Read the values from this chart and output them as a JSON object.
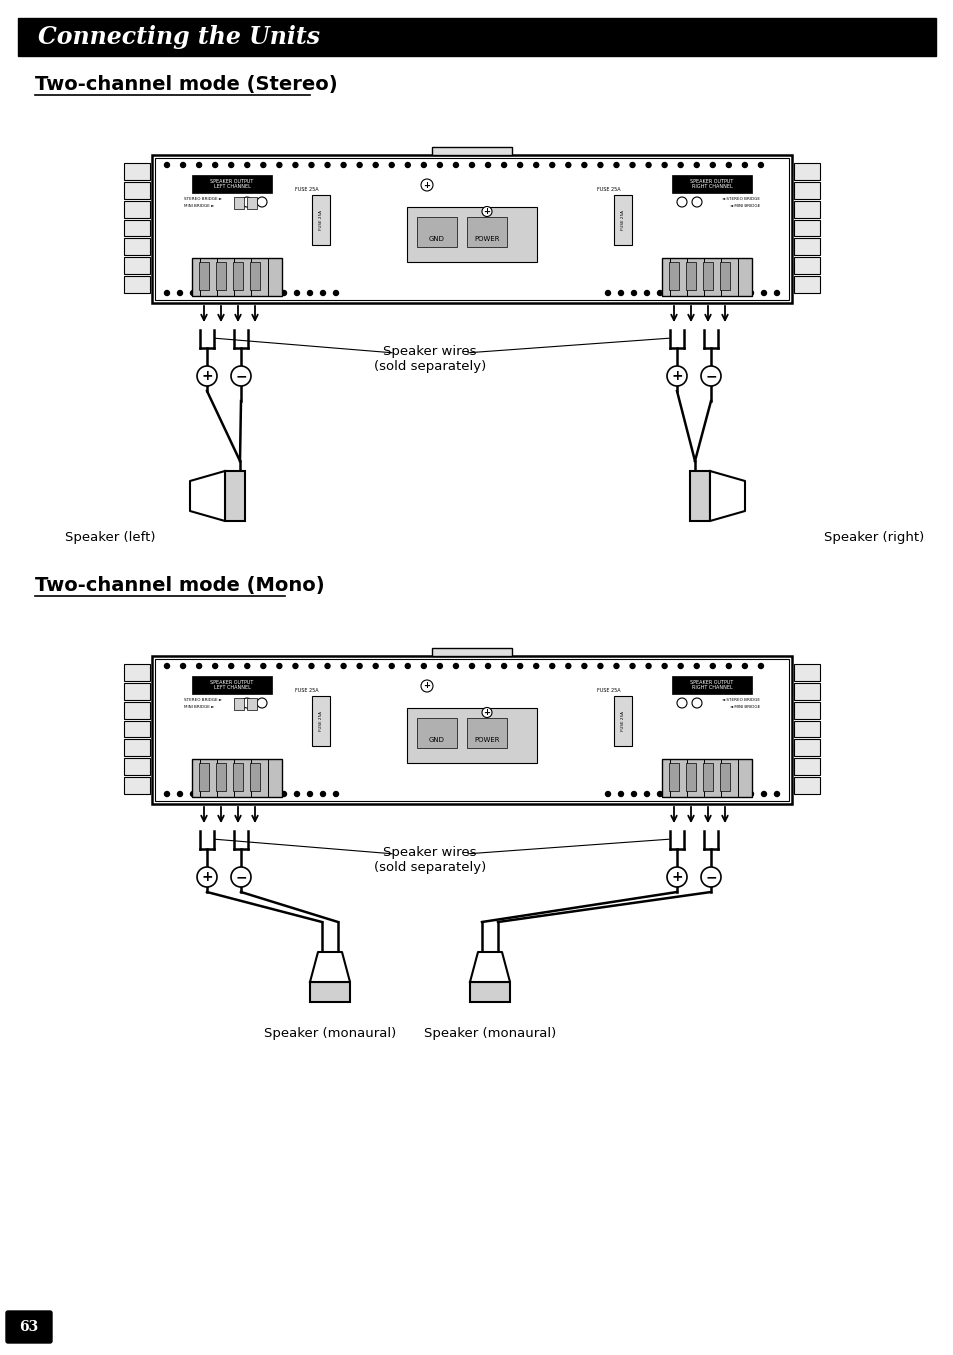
{
  "bg_color": "#ffffff",
  "header_bg": "#000000",
  "header_text": "Connecting the Units",
  "header_text_color": "#ffffff",
  "header_font_size": 17,
  "section1_title": "Two-channel mode (Stereo)",
  "section2_title": "Two-channel mode (Mono)",
  "section_font_size": 14,
  "label_font_size": 9.5,
  "small_label_font_size": 9,
  "page_number": "63",
  "stereo_labels": {
    "speaker_wires": "Speaker wires\n(sold separately)",
    "speaker_left": "Speaker (left)",
    "speaker_right": "Speaker (right)"
  },
  "mono_labels": {
    "speaker_wires": "Speaker wires\n(sold separately)",
    "speaker_mono1": "Speaker (monaural)",
    "speaker_mono2": "Speaker (monaural)"
  }
}
